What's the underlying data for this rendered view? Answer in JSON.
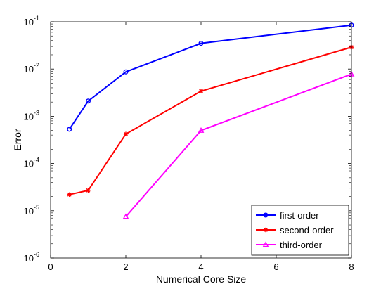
{
  "chart_data": {
    "type": "line",
    "title": "",
    "xlabel": "Numerical Core Size",
    "ylabel": "Error",
    "xlim": [
      0,
      8
    ],
    "ylim": [
      1e-06,
      0.1
    ],
    "yscale": "log",
    "grid": false,
    "legend_position": "bottom-right",
    "x_ticks": [
      0,
      2,
      4,
      6,
      8
    ],
    "x_tick_labels": [
      "0",
      "2",
      "4",
      "6",
      "8"
    ],
    "y_ticks": [
      {
        "value": 1e-06,
        "base": "10",
        "exp": "-6"
      },
      {
        "value": 1e-05,
        "base": "10",
        "exp": "-5"
      },
      {
        "value": 0.0001,
        "base": "10",
        "exp": "-4"
      },
      {
        "value": 0.001,
        "base": "10",
        "exp": "-3"
      },
      {
        "value": 0.01,
        "base": "10",
        "exp": "-2"
      },
      {
        "value": 0.1,
        "base": "10",
        "exp": "-1"
      }
    ],
    "series": [
      {
        "name": "first-order",
        "color": "#0000ff",
        "marker": "circle",
        "x": [
          0.5,
          1,
          2,
          4,
          8
        ],
        "y": [
          0.00053,
          0.0021,
          0.0087,
          0.035,
          0.085
        ]
      },
      {
        "name": "second-order",
        "color": "#ff0000",
        "marker": "star",
        "x": [
          0.5,
          1,
          2,
          4,
          8
        ],
        "y": [
          2.2e-05,
          2.7e-05,
          0.00042,
          0.0034,
          0.029
        ]
      },
      {
        "name": "third-order",
        "color": "#ff00ff",
        "marker": "triangle",
        "x": [
          2,
          4,
          8
        ],
        "y": [
          7.5e-06,
          0.0005,
          0.0078
        ]
      }
    ]
  }
}
